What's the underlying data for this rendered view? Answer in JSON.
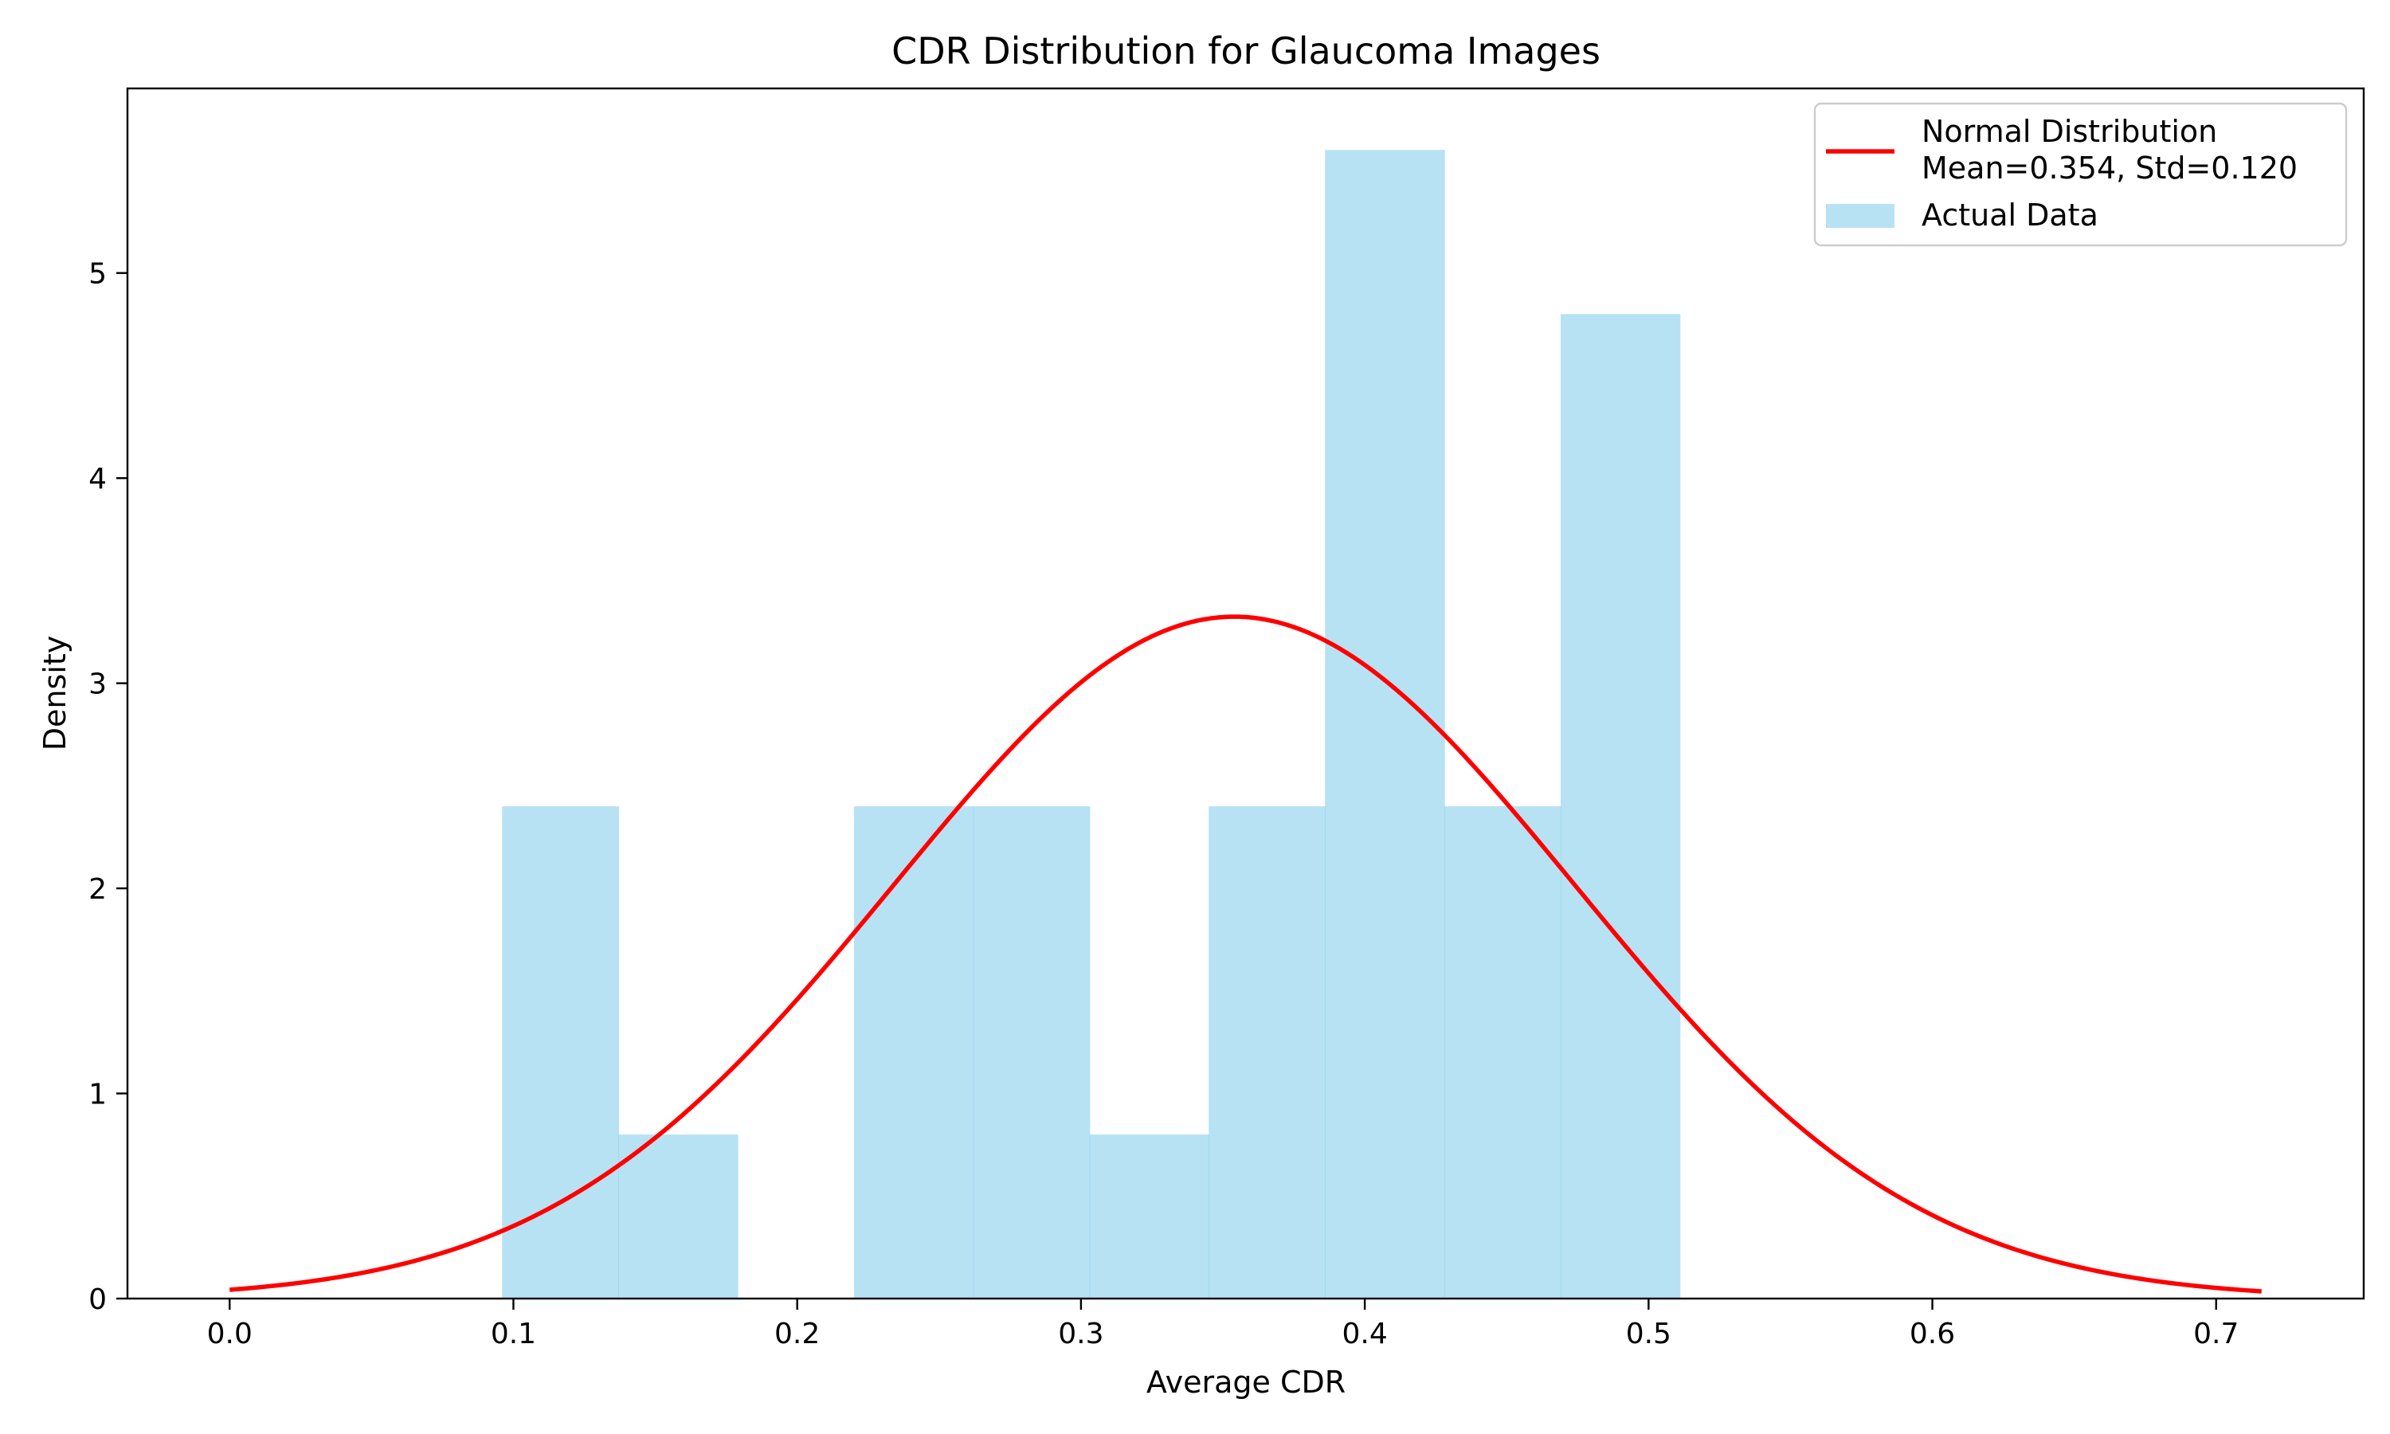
{
  "chart_data": {
    "type": "bar",
    "title": "CDR Distribution for Glaucoma Images",
    "xlabel": "Average CDR",
    "ylabel": "Density",
    "xlim": [
      -0.036,
      0.752
    ],
    "ylim": [
      0,
      5.9
    ],
    "xticks": [
      "0.0",
      "0.1",
      "0.2",
      "0.3",
      "0.4",
      "0.5",
      "0.6",
      "0.7"
    ],
    "yticks": [
      "0",
      "1",
      "2",
      "3",
      "4",
      "5"
    ],
    "grid": false,
    "legend_position": "top-right",
    "histogram": {
      "name": "Actual Data",
      "color": "#87CEEB",
      "bins": [
        {
          "x0": 0.096,
          "x1": 0.137,
          "density": 2.4
        },
        {
          "x0": 0.137,
          "x1": 0.179,
          "density": 0.8
        },
        {
          "x0": 0.179,
          "x1": 0.22,
          "density": 0.0
        },
        {
          "x0": 0.22,
          "x1": 0.262,
          "density": 2.4
        },
        {
          "x0": 0.262,
          "x1": 0.303,
          "density": 2.4
        },
        {
          "x0": 0.303,
          "x1": 0.345,
          "density": 0.8
        },
        {
          "x0": 0.345,
          "x1": 0.386,
          "density": 2.4
        },
        {
          "x0": 0.386,
          "x1": 0.428,
          "density": 5.6
        },
        {
          "x0": 0.428,
          "x1": 0.469,
          "density": 2.4
        },
        {
          "x0": 0.469,
          "x1": 0.511,
          "density": 4.8
        }
      ]
    },
    "normal_curve": {
      "name": "Normal Distribution",
      "name_line2": "Mean=0.354, Std=0.120",
      "mean": 0.354,
      "std": 0.12,
      "x_range": [
        0.0,
        0.716
      ],
      "color": "#FF0000"
    }
  }
}
